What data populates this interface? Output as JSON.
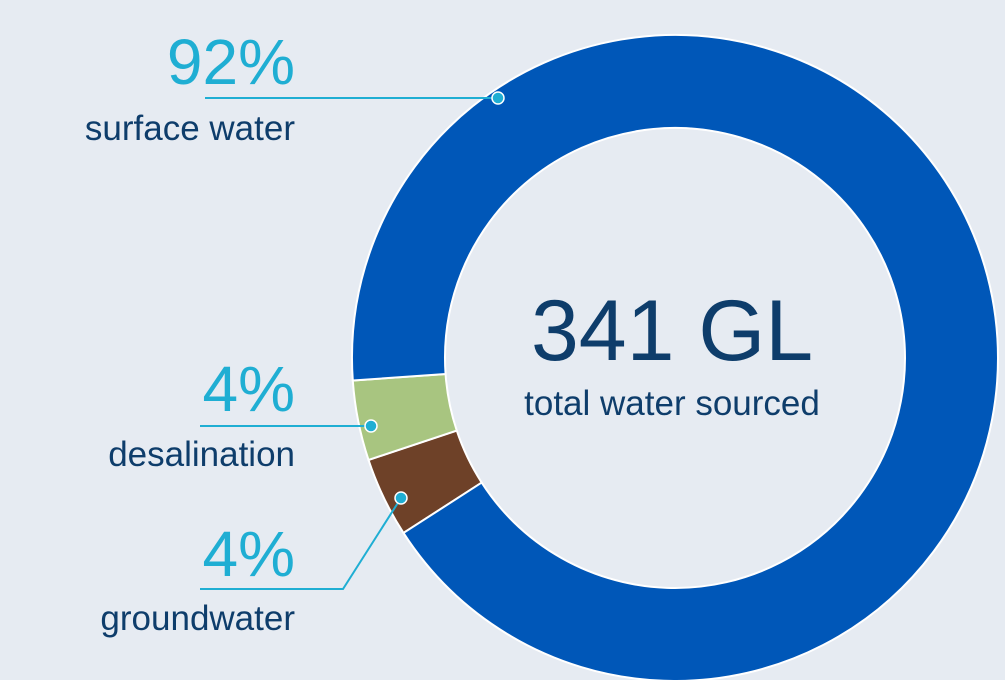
{
  "chart_data": {
    "type": "pie",
    "variant": "donut",
    "total": {
      "value": "341 GL",
      "caption": "total water sourced"
    },
    "slices": [
      {
        "name": "surface water",
        "value": 92,
        "label": "92%",
        "color": "#0057B8"
      },
      {
        "name": "desalination",
        "value": 4,
        "label": "4%",
        "color": "#A8C580"
      },
      {
        "name": "groundwater",
        "value": 4,
        "label": "4%",
        "color": "#6E4128"
      }
    ]
  }
}
